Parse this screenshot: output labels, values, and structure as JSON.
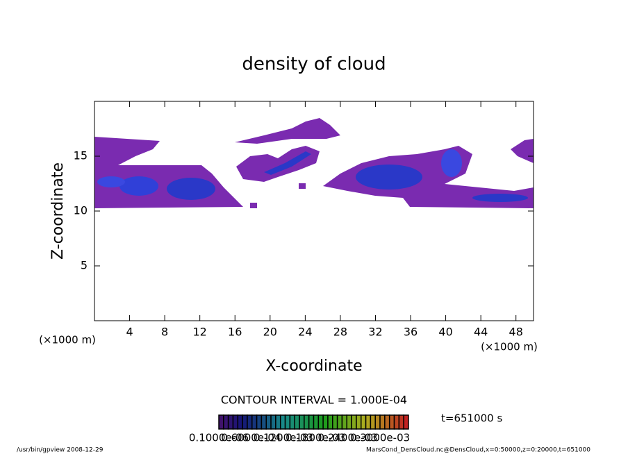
{
  "chart_data": {
    "type": "contourf",
    "title": "density of cloud",
    "xlabel": "X-coordinate",
    "ylabel": "Z-coordinate",
    "xunit": "(×1000 m)",
    "xunit_right": "(×1000 m)",
    "xlim": [
      0,
      50
    ],
    "ylim": [
      0,
      20
    ],
    "xticks": [
      4,
      8,
      12,
      16,
      20,
      24,
      28,
      32,
      36,
      40,
      44,
      48
    ],
    "yticks": [
      5,
      10,
      15
    ],
    "contour_interval": "CONTOUR INTERVAL = 1.000E-04",
    "time": "t=651000 s",
    "colorbar_labels": [
      "0.1000e-06",
      "0.6000e-04",
      "0.1200e-03",
      "0.1800e-03",
      "0.2400e-03",
      "0.3000e-03"
    ],
    "footer_left": "/usr/bin/gpview   2008-12-29",
    "footer_right": "MarsCond_DensCloud.nc@DensCloud,x=0:50000,z=0:20000,t=651000"
  }
}
